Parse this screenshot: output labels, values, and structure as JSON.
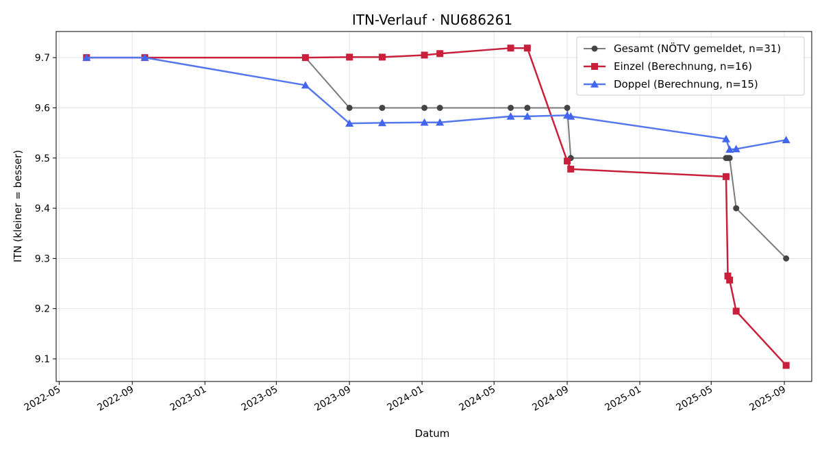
{
  "chart_data": {
    "type": "line",
    "title": "ITN-Verlauf · NU686261",
    "xlabel": "Datum",
    "ylabel": "ITN  (kleiner = besser)",
    "x_type": "date",
    "xlim": [
      "2022-04-26",
      "2025-10-17"
    ],
    "ylim": [
      9.055,
      9.752
    ],
    "x_ticks": [
      "2022-05-01",
      "2022-09-01",
      "2023-01-01",
      "2023-05-01",
      "2023-09-01",
      "2024-01-01",
      "2024-05-01",
      "2024-09-01",
      "2025-01-01",
      "2025-05-01",
      "2025-09-01"
    ],
    "x_tick_labels": [
      "2022-05",
      "2022-09",
      "2023-01",
      "2023-05",
      "2023-09",
      "2024-01",
      "2024-05",
      "2024-09",
      "2025-01",
      "2025-05",
      "2025-09"
    ],
    "y_ticks": [
      9.1,
      9.2,
      9.3,
      9.4,
      9.5,
      9.6,
      9.7
    ],
    "y_tick_labels": [
      "9.1",
      "9.2",
      "9.3",
      "9.4",
      "9.5",
      "9.6",
      "9.7"
    ],
    "grid": true,
    "legend_position": "top-right",
    "series": [
      {
        "name": "Gesamt (NÖTV gemeldet, n=31)",
        "color": "#7a7a7a",
        "marker_color": "#444444",
        "marker": "circle",
        "points": [
          [
            "2022-06-16",
            9.7
          ],
          [
            "2022-09-22",
            9.7
          ],
          [
            "2023-06-19",
            9.7
          ],
          [
            "2023-09-01",
            9.6
          ],
          [
            "2023-10-26",
            9.6
          ],
          [
            "2024-01-05",
            9.6
          ],
          [
            "2024-01-31",
            9.6
          ],
          [
            "2024-05-29",
            9.6
          ],
          [
            "2024-06-26",
            9.6
          ],
          [
            "2024-09-01",
            9.6
          ],
          [
            "2024-09-07",
            9.5
          ],
          [
            "2025-05-26",
            9.5
          ],
          [
            "2025-05-29",
            9.5
          ],
          [
            "2025-06-01",
            9.5
          ],
          [
            "2025-06-12",
            9.4
          ],
          [
            "2025-09-04",
            9.3
          ]
        ]
      },
      {
        "name": "Einzel (Berechnung, n=16)",
        "color": "#c8203a",
        "marker_color": "#c8203a",
        "marker": "square",
        "points": [
          [
            "2022-06-16",
            9.7
          ],
          [
            "2022-09-22",
            9.7
          ],
          [
            "2023-06-19",
            9.7
          ],
          [
            "2023-09-01",
            9.701
          ],
          [
            "2023-10-26",
            9.701
          ],
          [
            "2024-01-05",
            9.705
          ],
          [
            "2024-01-31",
            9.708
          ],
          [
            "2024-05-29",
            9.719
          ],
          [
            "2024-06-26",
            9.719
          ],
          [
            "2024-09-01",
            9.494
          ],
          [
            "2024-09-07",
            9.478
          ],
          [
            "2025-05-26",
            9.463
          ],
          [
            "2025-05-29",
            9.265
          ],
          [
            "2025-06-01",
            9.257
          ],
          [
            "2025-06-12",
            9.195
          ],
          [
            "2025-09-04",
            9.087
          ]
        ]
      },
      {
        "name": "Doppel (Berechnung, n=15)",
        "color": "#5577ee",
        "marker_color": "#4466ee",
        "marker": "triangle",
        "points": [
          [
            "2022-06-16",
            9.7
          ],
          [
            "2022-09-22",
            9.7
          ],
          [
            "2023-06-19",
            9.645
          ],
          [
            "2023-09-01",
            9.569
          ],
          [
            "2023-10-26",
            9.57
          ],
          [
            "2024-01-05",
            9.571
          ],
          [
            "2024-01-31",
            9.571
          ],
          [
            "2024-05-29",
            9.583
          ],
          [
            "2024-06-26",
            9.583
          ],
          [
            "2024-09-01",
            9.585
          ],
          [
            "2024-09-07",
            9.583
          ],
          [
            "2025-05-26",
            9.538
          ],
          [
            "2025-06-01",
            9.517
          ],
          [
            "2025-06-12",
            9.518
          ],
          [
            "2025-09-04",
            9.536
          ]
        ]
      }
    ]
  }
}
